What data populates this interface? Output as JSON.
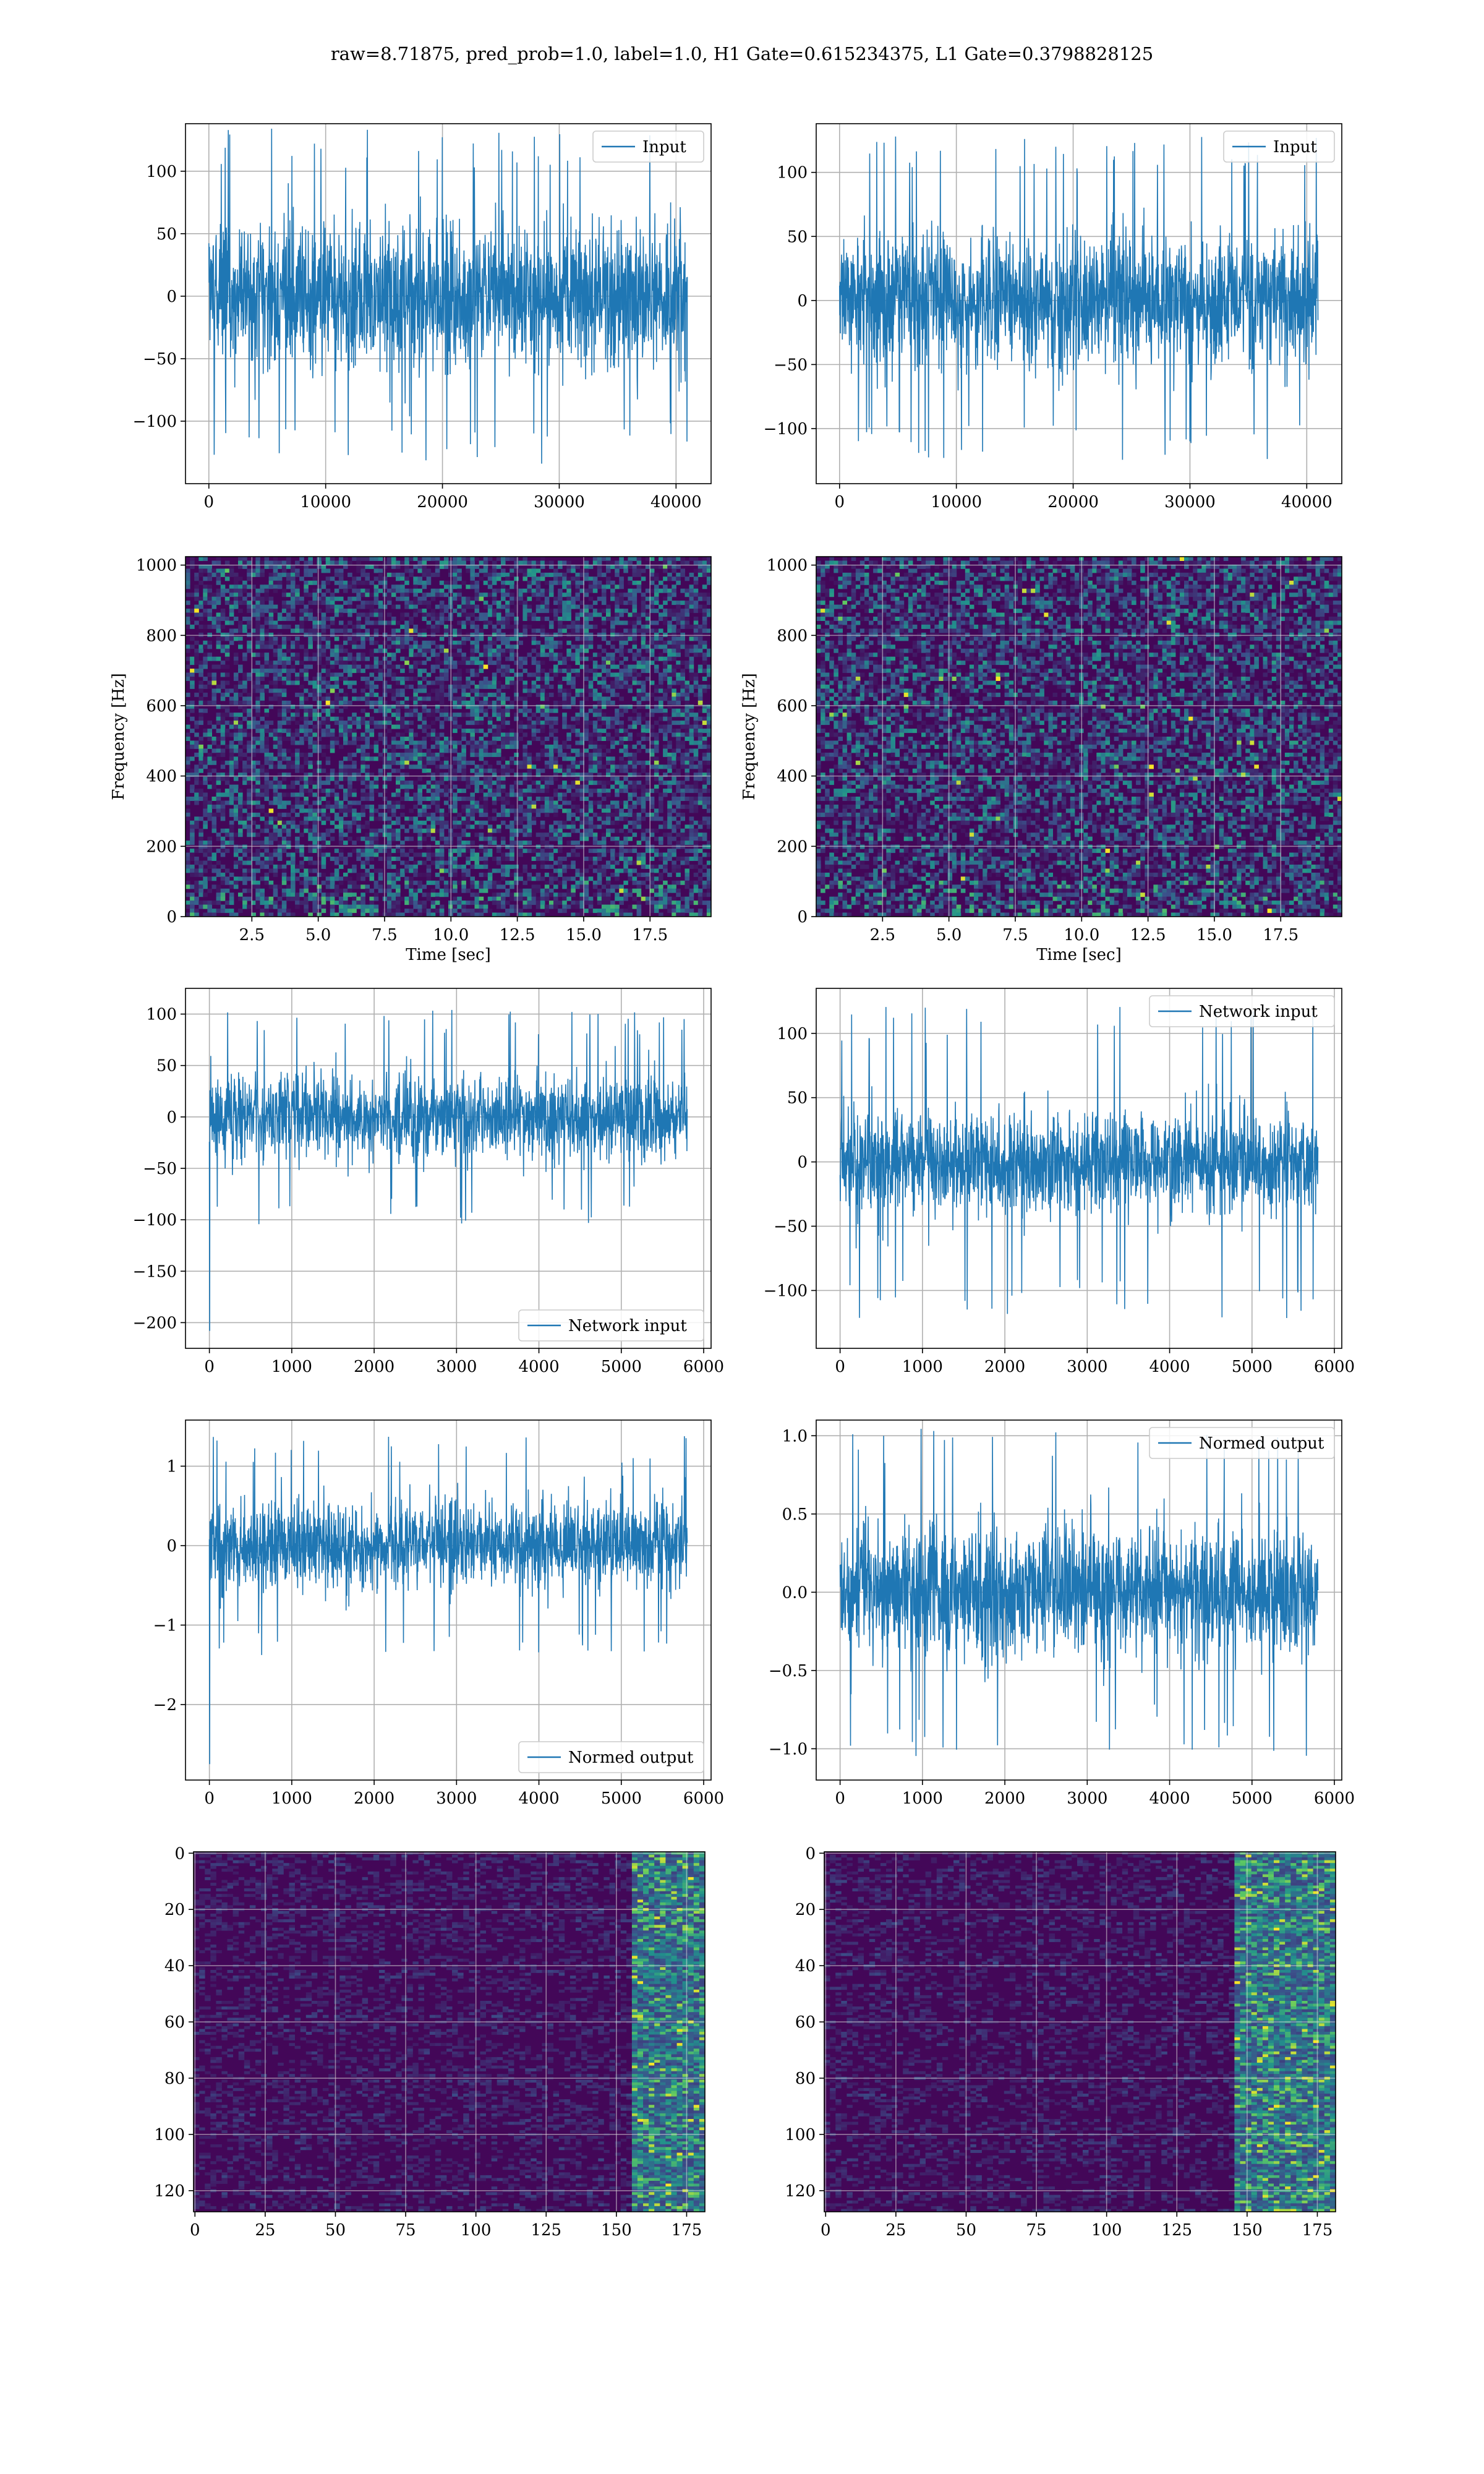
{
  "figure": {
    "suptitle": "raw=8.71875, pred_prob=1.0, label=1.0, H1 Gate=0.615234375, L1 Gate=0.3798828125"
  },
  "colors": {
    "line": "#1f77b4",
    "grid": "#b0b0b0",
    "viridis_dark": "#440154",
    "viridis_mid": "#21918c",
    "viridis_bright": "#fde725"
  },
  "chart_data": [
    {
      "id": "input-h1",
      "type": "line",
      "series": [
        {
          "name": "Input",
          "color": "#1f77b4"
        }
      ],
      "signal": {
        "n": 40960,
        "amplitude_typical": 65,
        "amplitude_peak": 135
      },
      "xlim": [
        -2000,
        43000
      ],
      "ylim": [
        -150,
        138
      ],
      "xticks": [
        0,
        10000,
        20000,
        30000,
        40000
      ],
      "xtick_labels": [
        "0",
        "10000",
        "20000",
        "30000",
        "40000"
      ],
      "yticks": [
        100,
        50,
        0,
        -50,
        -100
      ],
      "ytick_labels": [
        "100",
        "50",
        "0",
        "−50",
        "−100"
      ],
      "xlabel": "",
      "ylabel": "",
      "legend": "upper right",
      "grid": true
    },
    {
      "id": "input-l1",
      "type": "line",
      "series": [
        {
          "name": "Input",
          "color": "#1f77b4"
        }
      ],
      "signal": {
        "n": 40960,
        "amplitude_typical": 58,
        "amplitude_peak": 128
      },
      "xlim": [
        -2000,
        43000
      ],
      "ylim": [
        -143,
        138
      ],
      "xticks": [
        0,
        10000,
        20000,
        30000,
        40000
      ],
      "xtick_labels": [
        "0",
        "10000",
        "20000",
        "30000",
        "40000"
      ],
      "yticks": [
        100,
        50,
        0,
        -50,
        -100
      ],
      "ytick_labels": [
        "100",
        "50",
        "0",
        "−50",
        "−100"
      ],
      "xlabel": "",
      "ylabel": "",
      "legend": "upper right",
      "grid": true
    },
    {
      "id": "spectrogram-h1",
      "type": "heatmap",
      "colormap": "viridis",
      "xlim": [
        0,
        19.8
      ],
      "ylim": [
        0,
        1024
      ],
      "xticks": [
        2.5,
        5,
        7.5,
        10,
        12.5,
        15,
        17.5
      ],
      "xtick_labels": [
        "2.5",
        "5.0",
        "7.5",
        "10.0",
        "12.5",
        "15.0",
        "17.5"
      ],
      "yticks": [
        1000,
        800,
        600,
        400,
        200,
        0
      ],
      "ytick_labels": [
        "1000",
        "800",
        "600",
        "400",
        "200",
        "0"
      ],
      "xlabel": "Time [sec]",
      "ylabel": "Frequency [Hz]",
      "grid": true
    },
    {
      "id": "spectrogram-l1",
      "type": "heatmap",
      "colormap": "viridis",
      "xlim": [
        0,
        19.8
      ],
      "ylim": [
        0,
        1024
      ],
      "xticks": [
        2.5,
        5,
        7.5,
        10,
        12.5,
        15,
        17.5
      ],
      "xtick_labels": [
        "2.5",
        "5.0",
        "7.5",
        "10.0",
        "12.5",
        "15.0",
        "17.5"
      ],
      "yticks": [
        1000,
        800,
        600,
        400,
        200,
        0
      ],
      "ytick_labels": [
        "1000",
        "800",
        "600",
        "400",
        "200",
        "0"
      ],
      "xlabel": "Time [sec]",
      "ylabel": "Frequency [Hz]",
      "grid": true
    },
    {
      "id": "network-input-h1",
      "type": "line",
      "series": [
        {
          "name": "Network input",
          "color": "#1f77b4"
        }
      ],
      "signal": {
        "n": 5800,
        "amplitude_typical": 45,
        "amplitude_peak": 105,
        "spike_value": -208
      },
      "xlim": [
        -290,
        6090
      ],
      "ylim": [
        -225,
        125
      ],
      "xticks": [
        0,
        1000,
        2000,
        3000,
        4000,
        5000,
        6000
      ],
      "xtick_labels": [
        "0",
        "1000",
        "2000",
        "3000",
        "4000",
        "5000",
        "6000"
      ],
      "yticks": [
        100,
        50,
        0,
        -50,
        -100,
        -150,
        -200
      ],
      "ytick_labels": [
        "100",
        "50",
        "0",
        "−50",
        "−100",
        "−150",
        "−200"
      ],
      "xlabel": "",
      "ylabel": "",
      "legend": "lower right",
      "grid": true
    },
    {
      "id": "network-input-l1",
      "type": "line",
      "series": [
        {
          "name": "Network input",
          "color": "#1f77b4"
        }
      ],
      "signal": {
        "n": 5800,
        "amplitude_typical": 42,
        "amplitude_peak": 122
      },
      "xlim": [
        -290,
        6090
      ],
      "ylim": [
        -145,
        135
      ],
      "xticks": [
        0,
        1000,
        2000,
        3000,
        4000,
        5000,
        6000
      ],
      "xtick_labels": [
        "0",
        "1000",
        "2000",
        "3000",
        "4000",
        "5000",
        "6000"
      ],
      "yticks": [
        100,
        50,
        0,
        -50,
        -100
      ],
      "ytick_labels": [
        "100",
        "50",
        "0",
        "−50",
        "−100"
      ],
      "xlabel": "",
      "ylabel": "",
      "legend": "upper right",
      "grid": true
    },
    {
      "id": "normed-output-h1",
      "type": "line",
      "series": [
        {
          "name": "Normed output",
          "color": "#1f77b4"
        }
      ],
      "signal": {
        "n": 5800,
        "amplitude_typical": 0.6,
        "amplitude_peak": 1.4,
        "spike_value": -2.75
      },
      "xlim": [
        -290,
        6090
      ],
      "ylim": [
        -2.95,
        1.58
      ],
      "xticks": [
        0,
        1000,
        2000,
        3000,
        4000,
        5000,
        6000
      ],
      "xtick_labels": [
        "0",
        "1000",
        "2000",
        "3000",
        "4000",
        "5000",
        "6000"
      ],
      "yticks": [
        1,
        0,
        -1,
        -2
      ],
      "ytick_labels": [
        "1",
        "0",
        "−1",
        "−2"
      ],
      "xlabel": "",
      "ylabel": "",
      "legend": "lower right",
      "grid": true
    },
    {
      "id": "normed-output-l1",
      "type": "line",
      "series": [
        {
          "name": "Normed output",
          "color": "#1f77b4"
        }
      ],
      "signal": {
        "n": 5800,
        "amplitude_typical": 0.45,
        "amplitude_peak": 1.05
      },
      "xlim": [
        -290,
        6090
      ],
      "ylim": [
        -1.2,
        1.1
      ],
      "xticks": [
        0,
        1000,
        2000,
        3000,
        4000,
        5000,
        6000
      ],
      "xtick_labels": [
        "0",
        "1000",
        "2000",
        "3000",
        "4000",
        "5000",
        "6000"
      ],
      "yticks": [
        1.0,
        0.5,
        0.0,
        -0.5,
        -1.0
      ],
      "ytick_labels": [
        "1.0",
        "0.5",
        "0.0",
        "−0.5",
        "−1.0"
      ],
      "xlabel": "",
      "ylabel": "",
      "legend": "upper right",
      "grid": true
    },
    {
      "id": "feature-map-h1",
      "type": "heatmap",
      "colormap": "viridis",
      "rows": 128,
      "cols": 182,
      "bright_band_cols": [
        155,
        180
      ],
      "xlim": [
        -0.5,
        181.5
      ],
      "ylim": [
        127.5,
        -0.5
      ],
      "xticks": [
        0,
        25,
        50,
        75,
        100,
        125,
        150,
        175
      ],
      "xtick_labels": [
        "0",
        "25",
        "50",
        "75",
        "100",
        "125",
        "150",
        "175"
      ],
      "yticks": [
        0,
        20,
        40,
        60,
        80,
        100,
        120
      ],
      "ytick_labels": [
        "0",
        "20",
        "40",
        "60",
        "80",
        "100",
        "120"
      ],
      "xlabel": "",
      "ylabel": "",
      "grid": true
    },
    {
      "id": "feature-map-l1",
      "type": "heatmap",
      "colormap": "viridis",
      "rows": 128,
      "cols": 182,
      "bright_band_cols": [
        145,
        181
      ],
      "xlim": [
        -0.5,
        181.5
      ],
      "ylim": [
        127.5,
        -0.5
      ],
      "xticks": [
        0,
        25,
        50,
        75,
        100,
        125,
        150,
        175
      ],
      "xtick_labels": [
        "0",
        "25",
        "50",
        "75",
        "100",
        "125",
        "150",
        "175"
      ],
      "yticks": [
        0,
        20,
        40,
        60,
        80,
        100,
        120
      ],
      "ytick_labels": [
        "0",
        "20",
        "40",
        "60",
        "80",
        "100",
        "120"
      ],
      "xlabel": "",
      "ylabel": "",
      "grid": true
    }
  ]
}
